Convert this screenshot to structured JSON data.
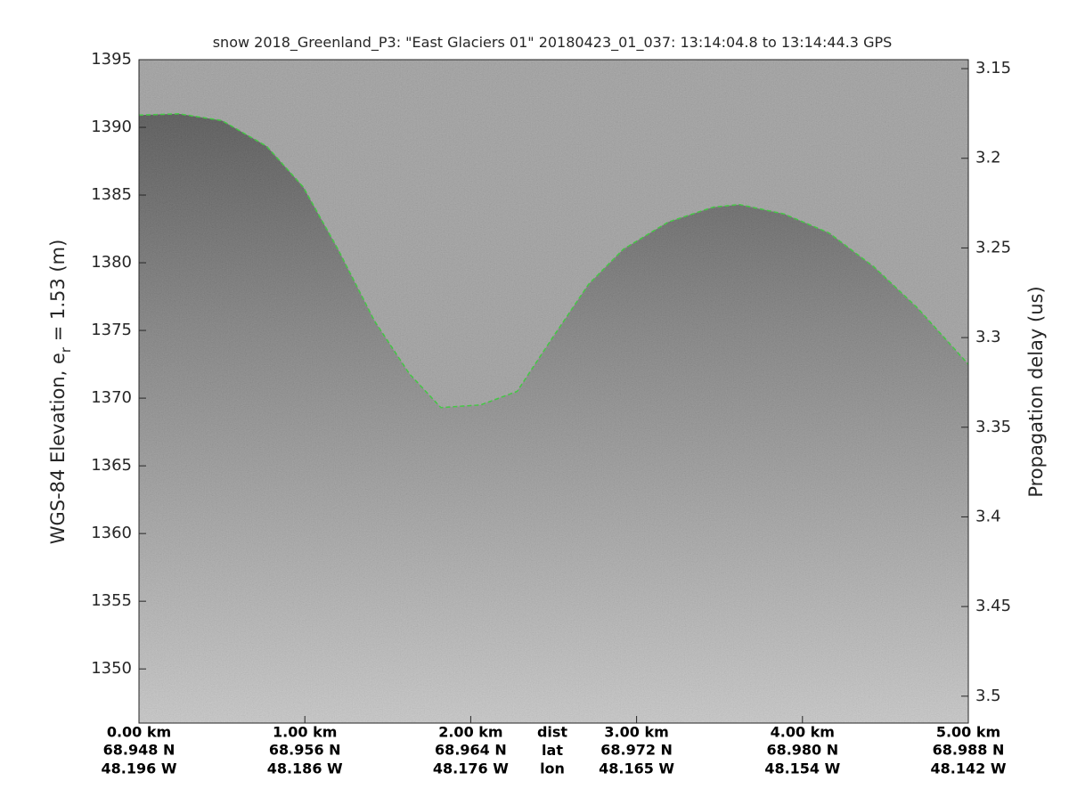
{
  "chart_data": {
    "type": "echogram",
    "title": "snow 2018_Greenland_P3: \"East Glaciers 01\"  20180423_01_037: 13:14:04.8 to 13:14:44.3 GPS",
    "ylabel_parts": [
      "WGS-84 Elevation, e",
      "r",
      " = 1.53 (m)"
    ],
    "y2label": "Propagation delay (us)",
    "xlim": [
      0,
      5
    ],
    "ylim": [
      1346,
      1395
    ],
    "yticks": [
      1350,
      1355,
      1360,
      1365,
      1370,
      1375,
      1380,
      1385,
      1390,
      1395
    ],
    "y2lim": [
      3.515,
      3.145
    ],
    "y2ticks": [
      3.15,
      3.2,
      3.25,
      3.3,
      3.35,
      3.4,
      3.45,
      3.5
    ],
    "xticks": [
      {
        "value": 0,
        "label": "0.00 km"
      },
      {
        "value": 1,
        "label": "1.00 km"
      },
      {
        "value": 2,
        "label": "2.00 km"
      },
      {
        "value": 3,
        "label": "3.00 km"
      },
      {
        "value": 4,
        "label": "4.00 km"
      },
      {
        "value": 5,
        "label": "5.00 km"
      }
    ],
    "lat_labels": [
      "68.948 N",
      "68.956 N",
      "68.964 N",
      "68.972 N",
      "68.980 N",
      "68.988 N"
    ],
    "lon_labels": [
      "48.196 W",
      "48.186 W",
      "48.176 W",
      "48.165 W",
      "48.154 W",
      "48.142 W"
    ],
    "x_row_labels": [
      "dist",
      "lat",
      "lon"
    ],
    "series": [
      {
        "color": "#22cc22",
        "x": [
          0,
          0.24,
          0.5,
          0.77,
          0.99,
          1.2,
          1.42,
          1.63,
          1.82,
          2.06,
          2.28,
          2.49,
          2.71,
          2.92,
          3.19,
          3.46,
          3.62,
          3.89,
          4.16,
          4.43,
          4.69,
          5.0
        ],
        "values": [
          1390.9,
          1391.0,
          1390.5,
          1388.6,
          1385.6,
          1381,
          1375.7,
          1371.8,
          1369.3,
          1369.5,
          1370.5,
          1374.4,
          1378.4,
          1381,
          1383,
          1384.1,
          1384.3,
          1383.6,
          1382.2,
          1379.7,
          1376.7,
          1372.5
        ]
      }
    ]
  }
}
